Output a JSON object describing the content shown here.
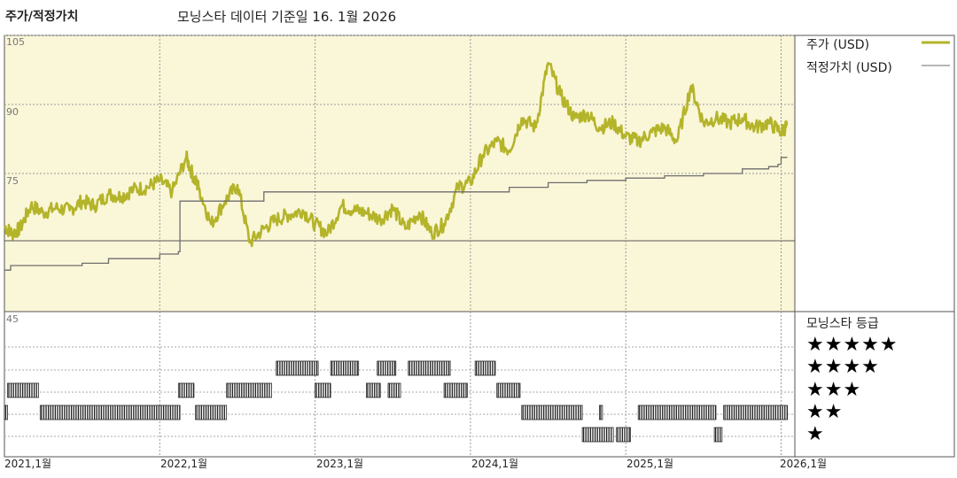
{
  "header": {
    "left_title": "주가/적정가치",
    "center_title": "모닝스타 데이터 기준일 16. 1월 2026"
  },
  "colors": {
    "price_line": "#b4b42a",
    "fair_value_line": "#6e6e6e",
    "plot_background": "#faf6d8",
    "rating_bars": "#222222"
  },
  "legend": {
    "price": "주가 (USD)",
    "fair_value": "적정가치 (USD)"
  },
  "ratings_panel": {
    "title": "모닝스타 등급",
    "levels": [
      "★★★★★",
      "★★★★",
      "★★★",
      "★★",
      "★"
    ]
  },
  "chart_data": {
    "type": "line",
    "x_range": [
      "2021-01",
      "2026-01"
    ],
    "x_ticks": [
      "2021,1월",
      "2022,1월",
      "2023,1월",
      "2024,1월",
      "2025,1월",
      "2026,1월"
    ],
    "y_ticks": [
      "105",
      "90",
      "75",
      "45"
    ],
    "ylim": [
      45,
      105
    ],
    "grid": true,
    "legend_position": "right",
    "series": [
      {
        "name": "주가 (USD)",
        "x": [
          2021.0,
          2021.05,
          2021.1,
          2021.17,
          2021.25,
          2021.33,
          2021.42,
          2021.5,
          2021.58,
          2021.67,
          2021.75,
          2021.83,
          2021.92,
          2022.0,
          2022.08,
          2022.17,
          2022.22,
          2022.25,
          2022.33,
          2022.42,
          2022.5,
          2022.58,
          2022.67,
          2022.75,
          2022.83,
          2022.92,
          2023.0,
          2023.08,
          2023.17,
          2023.25,
          2023.33,
          2023.42,
          2023.5,
          2023.58,
          2023.67,
          2023.75,
          2023.83,
          2023.92,
          2024.0,
          2024.08,
          2024.17,
          2024.25,
          2024.33,
          2024.42,
          2024.5,
          2024.58,
          2024.67,
          2024.75,
          2024.83,
          2024.92,
          2025.0,
          2025.08,
          2025.17,
          2025.25,
          2025.33,
          2025.42,
          2025.5,
          2025.58,
          2025.67,
          2025.75,
          2025.83,
          2025.92,
          2026.0,
          2026.04
        ],
        "values": [
          63.5,
          62,
          63,
          68,
          66.5,
          67.5,
          67,
          69,
          68,
          70.5,
          70,
          71.5,
          72,
          73.5,
          71,
          78.5,
          74,
          72,
          64,
          69,
          72.5,
          60,
          63,
          65,
          66,
          67,
          64,
          62,
          68,
          67,
          66.5,
          65,
          67.5,
          63,
          66.5,
          62,
          64,
          72,
          73,
          79,
          82,
          80,
          87,
          85,
          99,
          92,
          87,
          88,
          85,
          86,
          83,
          82,
          84,
          85,
          82,
          94,
          86,
          87,
          86,
          87,
          85,
          86,
          84,
          85.5
        ],
        "color": "#b4b42a"
      },
      {
        "name": "적정가치 (USD)",
        "x": [
          2021.0,
          2021.04,
          2021.25,
          2021.5,
          2021.67,
          2022.0,
          2022.12,
          2022.13,
          2022.5,
          2022.67,
          2023.0,
          2023.5,
          2024.0,
          2024.25,
          2024.5,
          2024.75,
          2025.0,
          2025.25,
          2025.5,
          2025.75,
          2025.92,
          2025.98,
          2026.0,
          2026.04
        ],
        "values": [
          54,
          55,
          55,
          55.5,
          56.5,
          57.5,
          58,
          69,
          69,
          71,
          71,
          71,
          71,
          72,
          73,
          73.5,
          74,
          74.5,
          75,
          76,
          76.5,
          77,
          78.5,
          78.5
        ],
        "color": "#6e6e6e"
      }
    ],
    "rating_history": [
      {
        "stars": 4,
        "periods": [
          [
            2022.75,
            2023.02
          ],
          [
            2023.1,
            2023.28
          ],
          [
            2023.4,
            2023.52
          ],
          [
            2023.6,
            2023.87
          ],
          [
            2024.03,
            2024.16
          ]
        ]
      },
      {
        "stars": 3,
        "periods": [
          [
            2021.02,
            2021.22
          ],
          [
            2022.12,
            2022.22
          ],
          [
            2022.43,
            2022.72
          ],
          [
            2023.0,
            2023.1
          ],
          [
            2023.33,
            2023.42
          ],
          [
            2023.47,
            2023.55
          ],
          [
            2023.83,
            2023.98
          ],
          [
            2024.17,
            2024.32
          ]
        ]
      },
      {
        "stars": 2,
        "periods": [
          [
            2021.0,
            2021.02
          ],
          [
            2021.23,
            2022.13
          ],
          [
            2022.23,
            2022.43
          ],
          [
            2024.33,
            2024.72
          ],
          [
            2024.83,
            2024.85
          ],
          [
            2025.08,
            2025.58
          ],
          [
            2025.63,
            2026.04
          ]
        ]
      },
      {
        "stars": 1,
        "periods": [
          [
            2024.72,
            2024.92
          ],
          [
            2024.94,
            2025.03
          ],
          [
            2025.57,
            2025.62
          ]
        ]
      }
    ]
  }
}
